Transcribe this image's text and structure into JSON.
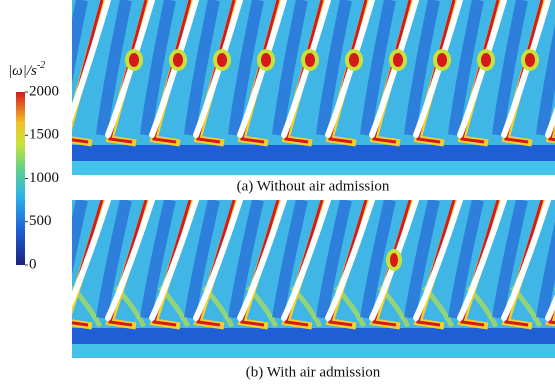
{
  "colorbar": {
    "label": "|ω|/s",
    "label_exponent": "-2",
    "range": [
      0,
      2000
    ],
    "ticks": [
      0,
      500,
      1000,
      1500,
      2000
    ]
  },
  "panels": [
    {
      "caption": "(a) Without air admission"
    },
    {
      "caption": "(b) With air admission"
    }
  ]
}
